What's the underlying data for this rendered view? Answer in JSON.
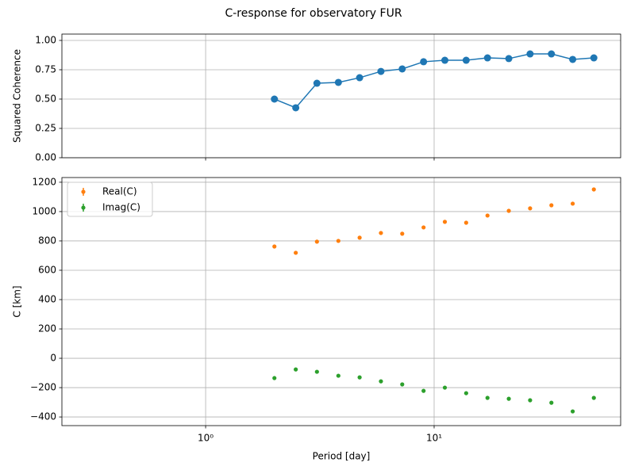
{
  "title": "C-response for observatory FUR",
  "chart_data": [
    {
      "type": "line",
      "ylabel": "Squared Coherence",
      "log_x": true,
      "grid": true,
      "color": "#1f77b4",
      "x": [
        2,
        2.48,
        3.07,
        3.81,
        4.72,
        5.85,
        7.25,
        8.99,
        11.14,
        13.81,
        17.12,
        21.22,
        26.3,
        32.6,
        40.4,
        50
      ],
      "values": [
        0.5,
        0.426,
        0.635,
        0.642,
        0.682,
        0.736,
        0.757,
        0.818,
        0.831,
        0.831,
        0.851,
        0.845,
        0.885,
        0.885,
        0.838,
        0.851
      ],
      "xlim": [
        0.235,
        65.5
      ],
      "xticks": [
        1,
        10
      ],
      "ylim": [
        0,
        1.054
      ],
      "yticks": [
        {
          "value": 0,
          "label": "0.00"
        },
        {
          "value": 0.25,
          "label": "0.25"
        },
        {
          "value": 0.5,
          "label": "0.50"
        },
        {
          "value": 0.75,
          "label": "0.75"
        },
        {
          "value": 1,
          "label": "1.00"
        }
      ]
    },
    {
      "type": "scatter",
      "ylabel": "C [km]",
      "xlabel": "Period [day]",
      "log_x": true,
      "grid": true,
      "legend": "upper left",
      "x": [
        2,
        2.48,
        3.07,
        3.81,
        4.72,
        5.85,
        7.25,
        8.99,
        11.14,
        13.81,
        17.12,
        21.22,
        26.3,
        32.6,
        40.4,
        50
      ],
      "series": [
        {
          "name": "Real(C)",
          "color": "#ff7f0e",
          "values": [
            762,
            719,
            795,
            800,
            822,
            854,
            849,
            892,
            930,
            924,
            973,
            1005,
            1022,
            1043,
            1054,
            1151
          ]
        },
        {
          "name": "Imag(C)",
          "color": "#2ca02c",
          "values": [
            -135,
            -76,
            -92,
            -119,
            -130,
            -157,
            -178,
            -222,
            -200,
            -238,
            -270,
            -276,
            -286,
            -303,
            -362,
            -270
          ]
        }
      ],
      "xlim": [
        0.235,
        65.5
      ],
      "xticks": [
        {
          "value": 1,
          "label": "10⁰"
        },
        {
          "value": 10,
          "label": "10¹"
        }
      ],
      "ylim": [
        -459,
        1232
      ],
      "yticks": [
        {
          "value": -400,
          "label": "−400"
        },
        {
          "value": -200,
          "label": "−200"
        },
        0,
        200,
        400,
        600,
        800,
        1000,
        1200
      ]
    }
  ]
}
